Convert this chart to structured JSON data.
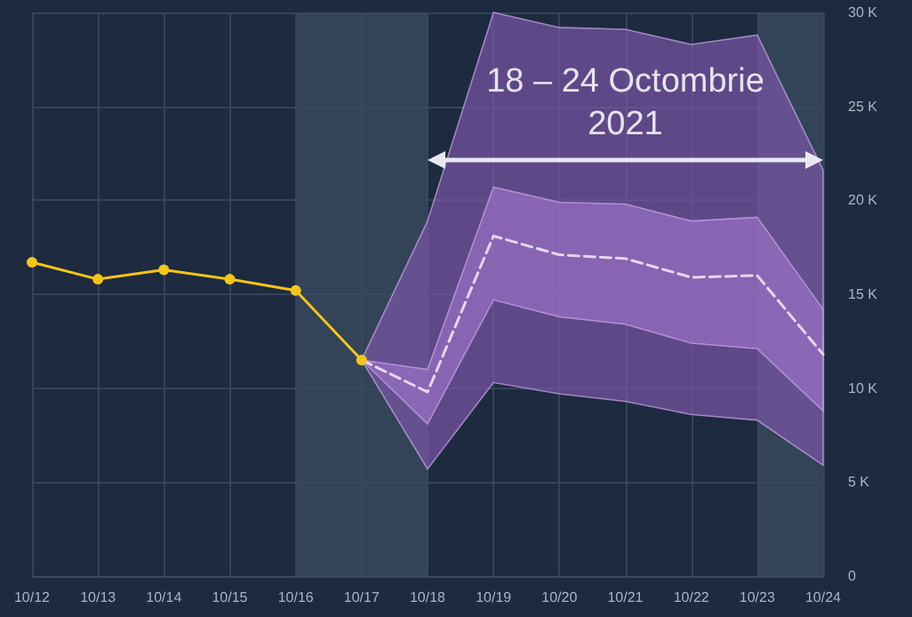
{
  "chart_data": {
    "type": "line",
    "categories": [
      "10/12",
      "10/13",
      "10/14",
      "10/15",
      "10/16",
      "10/17",
      "10/18",
      "10/19",
      "10/20",
      "10/21",
      "10/22",
      "10/23",
      "10/24"
    ],
    "series": [
      {
        "type": "area",
        "color": "#7a55a8",
        "values": [
          null,
          null,
          null,
          null,
          null,
          null,
          null,
          null,
          null,
          null,
          null,
          null,
          null
        ],
        "lower": [
          null,
          null,
          null,
          null,
          null,
          11500,
          5700,
          10300,
          9700,
          9300,
          8600,
          8300,
          5900
        ],
        "upper": [
          null,
          null,
          null,
          null,
          null,
          11500,
          18900,
          30000,
          29200,
          29100,
          28300,
          28800,
          21600
        ]
      },
      {
        "type": "area",
        "color": "#9a72c4",
        "values": [
          null,
          null,
          null,
          null,
          null,
          null,
          null,
          null,
          null,
          null,
          null,
          null,
          null
        ],
        "lower": [
          null,
          null,
          null,
          null,
          null,
          11500,
          8100,
          14700,
          13800,
          13400,
          12400,
          12100,
          8800
        ],
        "upper": [
          null,
          null,
          null,
          null,
          null,
          11500,
          11000,
          20700,
          19900,
          19800,
          18900,
          19100,
          14200
        ]
      },
      {
        "color": "#f5c518",
        "marker": "circle",
        "line_style": "solid",
        "values": [
          16700,
          15800,
          16300,
          15800,
          15200,
          11500,
          null,
          null,
          null,
          null,
          null,
          null,
          null
        ]
      },
      {
        "color": "#e6d6f2",
        "marker": "none",
        "line_style": "dashed",
        "values": [
          null,
          null,
          null,
          null,
          null,
          11500,
          9800,
          18100,
          17100,
          16900,
          15900,
          16000,
          11800
        ]
      }
    ],
    "ylim": [
      0,
      30000
    ],
    "yticks": [
      0,
      {
        "value": 5000,
        "label": "5 K"
      },
      {
        "value": 10000,
        "label": "10 K"
      },
      {
        "value": 15000,
        "label": "15 K"
      },
      {
        "value": 20000,
        "label": "20 K"
      },
      {
        "value": 25000,
        "label": "25 K"
      },
      {
        "value": 30000,
        "label": "30 K"
      }
    ],
    "grid": true,
    "bands": [
      {
        "axis": "x",
        "from": "10/16",
        "to": "10/18",
        "color": "#3a4a5f"
      },
      {
        "axis": "x",
        "from": "10/23",
        "to": "10/24",
        "color": "#3a4a5f"
      }
    ],
    "annotations": [
      "18 – 24 Octombrie\n2021"
    ]
  }
}
